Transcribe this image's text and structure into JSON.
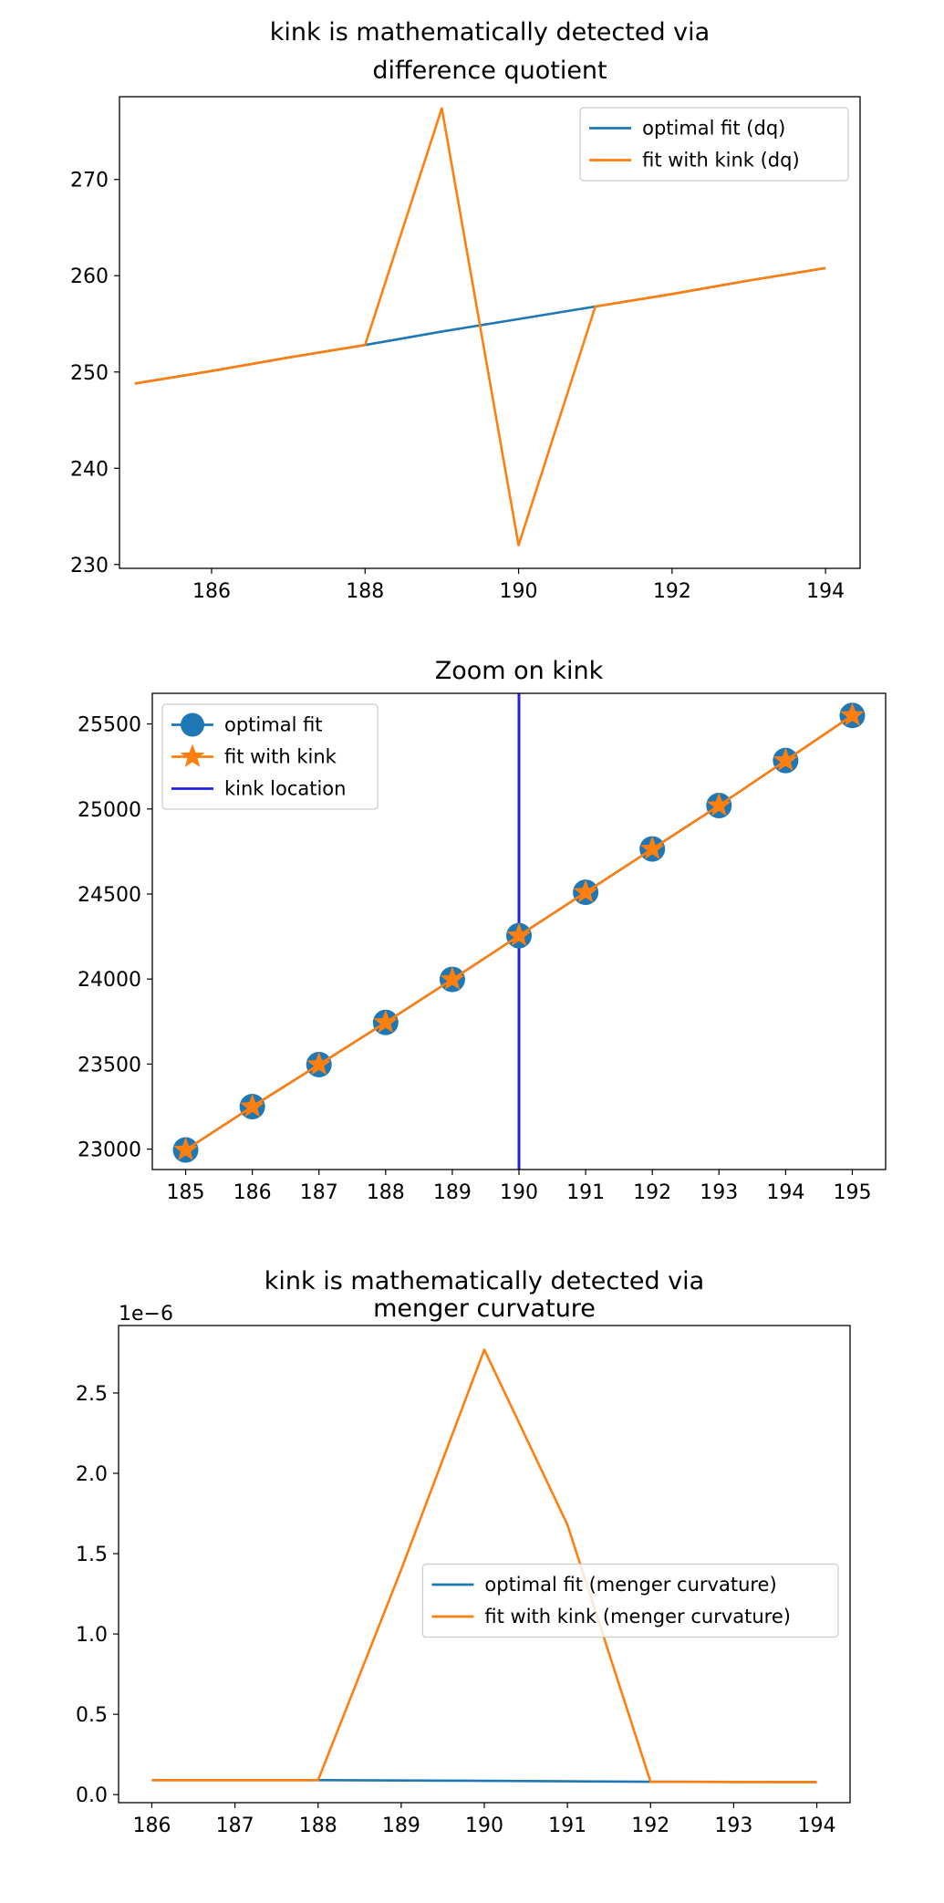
{
  "colors": {
    "blue": "#1f77b4",
    "orange": "#ff7f0e",
    "kink_line": "#2020e8"
  },
  "chart_data": [
    {
      "type": "line",
      "title": "kink is mathematically detected via\ndifference quotient",
      "xlim": [
        184.8,
        194.45
      ],
      "ylim": [
        229.6,
        278.6
      ],
      "xticks": [
        186,
        188,
        190,
        192,
        194
      ],
      "yticks": [
        230,
        240,
        250,
        260,
        270
      ],
      "grid": false,
      "legend_position": "top-right",
      "series": [
        {
          "name": "optimal fit (dq)",
          "color": "#1f77b4",
          "x": [
            185,
            186,
            187,
            188,
            189,
            190,
            191,
            192,
            193,
            194
          ],
          "y": [
            248.8,
            250.1,
            251.5,
            252.8,
            254.2,
            255.5,
            256.8,
            258.1,
            259.5,
            260.8
          ]
        },
        {
          "name": "fit with kink (dq)",
          "color": "#ff7f0e",
          "x": [
            185,
            186,
            187,
            188,
            189,
            190,
            191,
            192,
            193,
            194
          ],
          "y": [
            248.8,
            250.1,
            251.5,
            252.8,
            277.4,
            232.0,
            256.8,
            258.1,
            259.5,
            260.8
          ]
        }
      ]
    },
    {
      "type": "line",
      "title": "Zoom on kink",
      "xlim": [
        184.5,
        195.5
      ],
      "ylim": [
        22880,
        25680
      ],
      "xticks": [
        185,
        186,
        187,
        188,
        189,
        190,
        191,
        192,
        193,
        194,
        195
      ],
      "yticks": [
        23000,
        23500,
        24000,
        24500,
        25000,
        25500
      ],
      "grid": false,
      "legend_position": "top-left",
      "series": [
        {
          "name": "optimal fit",
          "color": "#1f77b4",
          "marker": "circle",
          "x": [
            185,
            186,
            187,
            188,
            189,
            190,
            191,
            192,
            193,
            194,
            195
          ],
          "y": [
            22995,
            23250,
            23497,
            23745,
            23998,
            24255,
            24510,
            24765,
            25020,
            25285,
            25550
          ]
        },
        {
          "name": "fit with kink",
          "color": "#ff7f0e",
          "marker": "star",
          "x": [
            185,
            186,
            187,
            188,
            189,
            190,
            191,
            192,
            193,
            194,
            195
          ],
          "y": [
            22995,
            23250,
            23497,
            23745,
            23998,
            24255,
            24510,
            24765,
            25020,
            25285,
            25550
          ]
        }
      ],
      "vlines": [
        {
          "name": "kink location",
          "x": 190,
          "color": "#2020e8"
        }
      ]
    },
    {
      "type": "line",
      "title": "kink is mathematically detected via\nmenger curvature",
      "offset_label": "1e−6",
      "xlim": [
        185.6,
        194.4
      ],
      "ylim": [
        -0.05,
        2.92
      ],
      "xticks": [
        186,
        187,
        188,
        189,
        190,
        191,
        192,
        193,
        194
      ],
      "yticks": [
        0.0,
        0.5,
        1.0,
        1.5,
        2.0,
        2.5
      ],
      "ytick_labels": [
        "0.0",
        "0.5",
        "1.0",
        "1.5",
        "2.0",
        "2.5"
      ],
      "grid": false,
      "legend_position": "center-right",
      "series": [
        {
          "name": "optimal fit (menger curvature)",
          "color": "#1f77b4",
          "x": [
            186,
            187,
            188,
            189,
            190,
            191,
            192,
            193,
            194
          ],
          "y": [
            0.09,
            0.09,
            0.09,
            0.088,
            0.086,
            0.083,
            0.08,
            0.079,
            0.078
          ]
        },
        {
          "name": "fit with kink (menger curvature)",
          "color": "#ff7f0e",
          "x": [
            186,
            187,
            188,
            189,
            190,
            191,
            192,
            193,
            194
          ],
          "y": [
            0.09,
            0.09,
            0.09,
            1.4,
            2.77,
            1.68,
            0.08,
            0.079,
            0.078
          ]
        }
      ]
    }
  ]
}
